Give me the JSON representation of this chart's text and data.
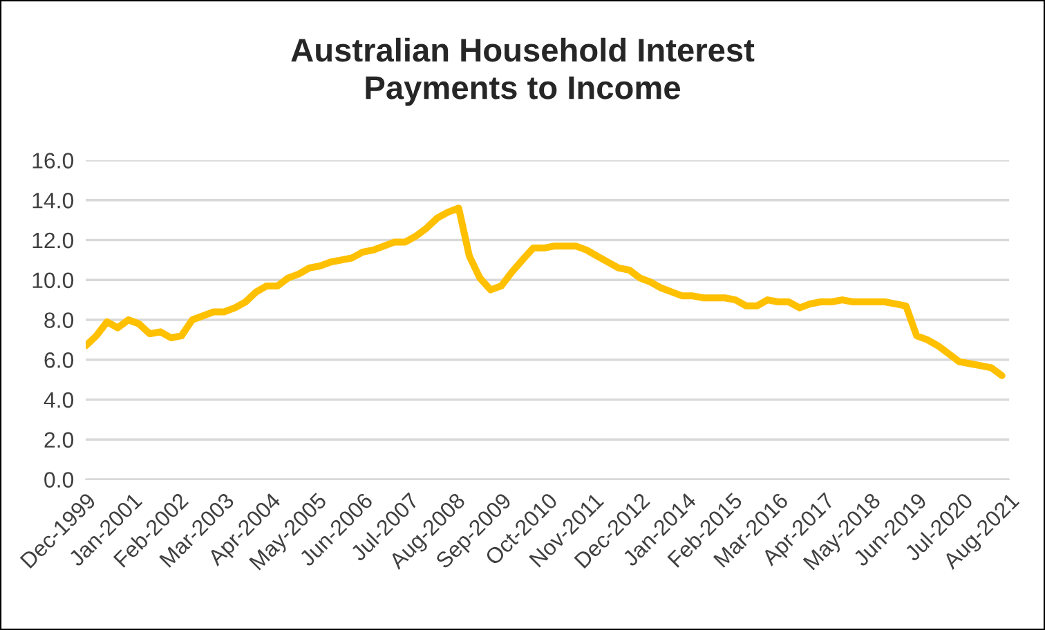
{
  "chart_data": {
    "type": "line",
    "title": "Australian Household Interest\nPayments to Income",
    "x": [
      "1999-12",
      "2000-03",
      "2000-06",
      "2000-09",
      "2000-12",
      "2001-03",
      "2001-06",
      "2001-09",
      "2001-12",
      "2002-03",
      "2002-06",
      "2002-09",
      "2002-12",
      "2003-03",
      "2003-06",
      "2003-09",
      "2003-12",
      "2004-03",
      "2004-06",
      "2004-09",
      "2004-12",
      "2005-03",
      "2005-06",
      "2005-09",
      "2005-12",
      "2006-03",
      "2006-06",
      "2006-09",
      "2006-12",
      "2007-03",
      "2007-06",
      "2007-09",
      "2007-12",
      "2008-03",
      "2008-06",
      "2008-09",
      "2008-12",
      "2009-03",
      "2009-06",
      "2009-09",
      "2009-12",
      "2010-03",
      "2010-06",
      "2010-09",
      "2010-12",
      "2011-03",
      "2011-06",
      "2011-09",
      "2011-12",
      "2012-03",
      "2012-06",
      "2012-09",
      "2012-12",
      "2013-03",
      "2013-06",
      "2013-09",
      "2013-12",
      "2014-03",
      "2014-06",
      "2014-09",
      "2014-12",
      "2015-03",
      "2015-06",
      "2015-09",
      "2015-12",
      "2016-03",
      "2016-06",
      "2016-09",
      "2016-12",
      "2017-03",
      "2017-06",
      "2017-09",
      "2017-12",
      "2018-03",
      "2018-06",
      "2018-09",
      "2018-12",
      "2019-03",
      "2019-06",
      "2019-09",
      "2019-12",
      "2020-03",
      "2020-06",
      "2020-09",
      "2020-12",
      "2021-03",
      "2021-06"
    ],
    "series": [
      {
        "color": "#ffc000",
        "values": [
          6.7,
          7.2,
          7.9,
          7.6,
          8.0,
          7.8,
          7.3,
          7.4,
          7.1,
          7.2,
          8.0,
          8.2,
          8.4,
          8.4,
          8.6,
          8.9,
          9.4,
          9.7,
          9.7,
          10.1,
          10.3,
          10.6,
          10.7,
          10.9,
          11.0,
          11.1,
          11.4,
          11.5,
          11.7,
          11.9,
          11.9,
          12.2,
          12.6,
          13.1,
          13.4,
          13.6,
          11.2,
          10.1,
          9.5,
          9.7,
          10.4,
          11.0,
          11.6,
          11.6,
          11.7,
          11.7,
          11.7,
          11.5,
          11.2,
          10.9,
          10.6,
          10.5,
          10.1,
          9.9,
          9.6,
          9.4,
          9.2,
          9.2,
          9.1,
          9.1,
          9.1,
          9.0,
          8.7,
          8.7,
          9.0,
          8.9,
          8.9,
          8.6,
          8.8,
          8.9,
          8.9,
          9.0,
          8.9,
          8.9,
          8.9,
          8.9,
          8.8,
          8.7,
          7.2,
          7.0,
          6.7,
          6.3,
          5.9,
          5.8,
          5.7,
          5.6,
          5.2
        ]
      }
    ],
    "xlim": [
      "1999-12",
      "2021-08"
    ],
    "xticks": [
      {
        "value": "1999-12",
        "label": "Dec-1999"
      },
      {
        "value": "2001-01",
        "label": "Jan-2001"
      },
      {
        "value": "2002-02",
        "label": "Feb-2002"
      },
      {
        "value": "2003-03",
        "label": "Mar-2003"
      },
      {
        "value": "2004-04",
        "label": "Apr-2004"
      },
      {
        "value": "2005-05",
        "label": "May-2005"
      },
      {
        "value": "2006-06",
        "label": "Jun-2006"
      },
      {
        "value": "2007-07",
        "label": "Jul-2007"
      },
      {
        "value": "2008-08",
        "label": "Aug-2008"
      },
      {
        "value": "2009-09",
        "label": "Sep-2009"
      },
      {
        "value": "2010-10",
        "label": "Oct-2010"
      },
      {
        "value": "2011-11",
        "label": "Nov-2011"
      },
      {
        "value": "2012-12",
        "label": "Dec-2012"
      },
      {
        "value": "2014-01",
        "label": "Jan-2014"
      },
      {
        "value": "2015-02",
        "label": "Feb-2015"
      },
      {
        "value": "2016-03",
        "label": "Mar-2016"
      },
      {
        "value": "2017-04",
        "label": "Apr-2017"
      },
      {
        "value": "2018-05",
        "label": "May-2018"
      },
      {
        "value": "2019-06",
        "label": "Jun-2019"
      },
      {
        "value": "2020-07",
        "label": "Jul-2020"
      },
      {
        "value": "2021-08",
        "label": "Aug-2021"
      }
    ],
    "ylim": [
      0,
      16
    ],
    "yticks": [
      {
        "value": 0,
        "label": "0.0"
      },
      {
        "value": 2,
        "label": "2.0"
      },
      {
        "value": 4,
        "label": "4.0"
      },
      {
        "value": 6,
        "label": "6.0"
      },
      {
        "value": 8,
        "label": "8.0"
      },
      {
        "value": 10,
        "label": "10.0"
      },
      {
        "value": 12,
        "label": "12.0"
      },
      {
        "value": 14,
        "label": "14.0"
      },
      {
        "value": 16,
        "label": "16.0"
      }
    ],
    "grid": "y",
    "marker": "none",
    "line_style": "solid",
    "legend": false
  }
}
